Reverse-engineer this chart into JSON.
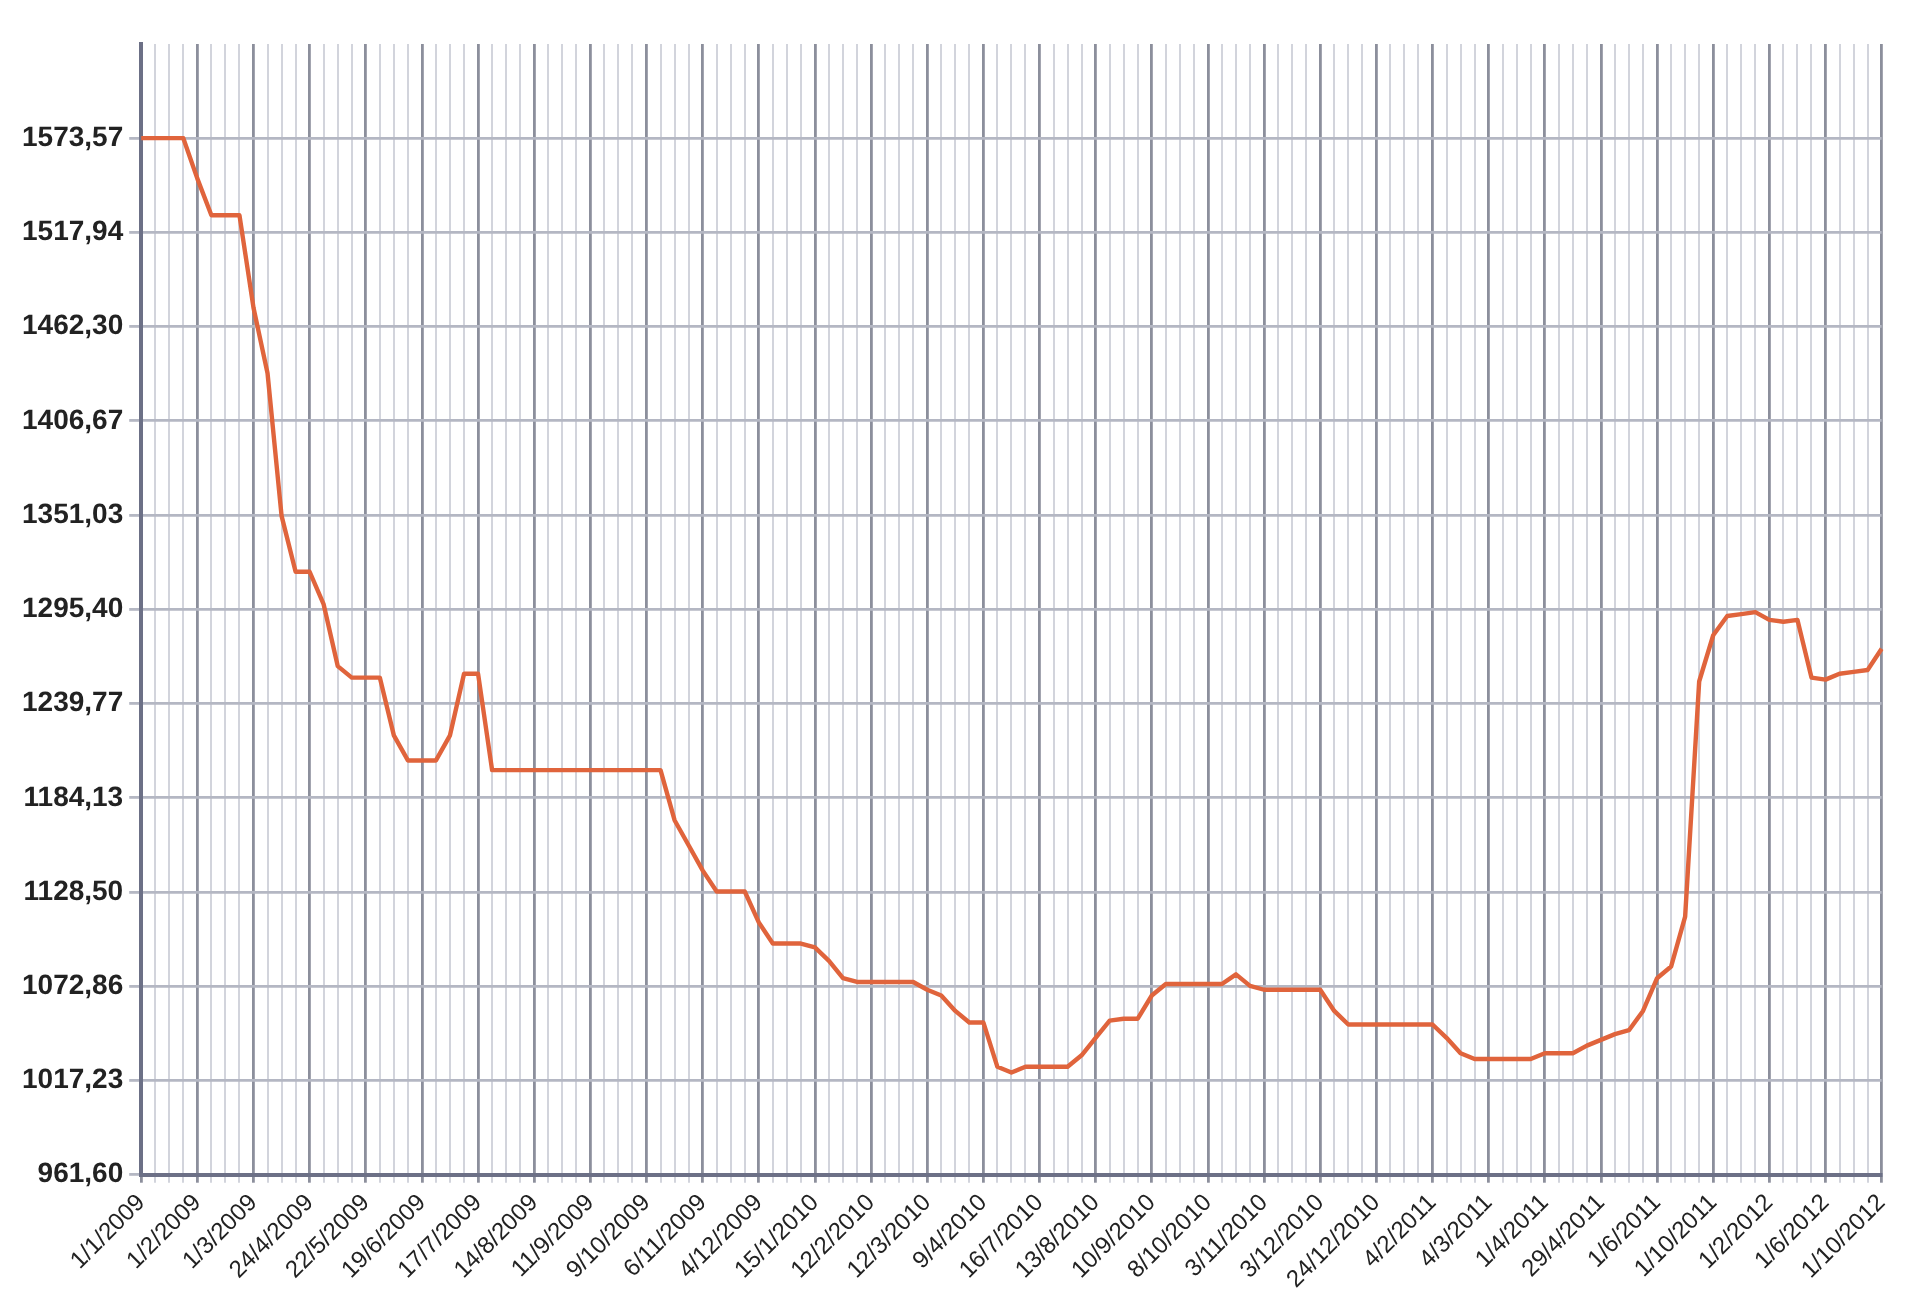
{
  "chart_data": {
    "type": "line",
    "categories": [
      "1/1/2009",
      null,
      null,
      null,
      "1/2/2009",
      null,
      null,
      null,
      "1/3/2009",
      null,
      null,
      null,
      "24/4/2009",
      null,
      null,
      null,
      "22/5/2009",
      null,
      null,
      null,
      "19/6/2009",
      null,
      null,
      null,
      "17/7/2009",
      null,
      null,
      null,
      "14/8/2009",
      null,
      null,
      null,
      "11/9/2009",
      null,
      null,
      null,
      "9/10/2009",
      null,
      null,
      null,
      "6/11/2009",
      null,
      null,
      null,
      "4/12/2009",
      null,
      null,
      null,
      "15/1/2010",
      null,
      null,
      null,
      "12/2/2010",
      null,
      null,
      null,
      "12/3/2010",
      null,
      null,
      null,
      "9/4/2010",
      null,
      null,
      null,
      "16/7/2010",
      null,
      null,
      null,
      "13/8/2010",
      null,
      null,
      null,
      "10/9/2010",
      null,
      null,
      null,
      "8/10/2010",
      null,
      null,
      null,
      "3/11/2010",
      null,
      null,
      null,
      "3/12/2010",
      null,
      null,
      null,
      "24/12/2010",
      null,
      null,
      null,
      "4/2/2011",
      null,
      null,
      null,
      "4/3/2011",
      null,
      null,
      null,
      "1/4/2011",
      null,
      null,
      null,
      "29/4/2011",
      null,
      null,
      null,
      "1/6/2011",
      null,
      null,
      null,
      "1/10/2011",
      null,
      null,
      null,
      "1/2/2012",
      null,
      null,
      null,
      "1/6/2012",
      null,
      null,
      null,
      "1/10/2012"
    ],
    "series": [
      {
        "color": "#e0643c",
        "values": [
          1573.6,
          1573.6,
          1573.6,
          1573.6,
          1549.7,
          1528.1,
          1528.1,
          1528.1,
          1473.5,
          1434.8,
          1350.6,
          1317.6,
          1317.6,
          1298.3,
          1261.9,
          1255.1,
          1255.1,
          1255.1,
          1221.0,
          1206.2,
          1206.2,
          1206.2,
          1221.0,
          1257.4,
          1257.4,
          1200.5,
          1200.5,
          1200.5,
          1200.5,
          1200.5,
          1200.5,
          1200.5,
          1200.5,
          1200.5,
          1200.5,
          1200.5,
          1200.5,
          1200.5,
          1170.9,
          1156.1,
          1141.3,
          1128.8,
          1128.8,
          1128.8,
          1110.6,
          1098.1,
          1098.1,
          1098.1,
          1095.8,
          1087.9,
          1077.6,
          1075.4,
          1075.4,
          1075.4,
          1075.4,
          1075.4,
          1070.8,
          1067.4,
          1058.3,
          1051.5,
          1051.5,
          1025.3,
          1021.9,
          1025.3,
          1025.3,
          1025.3,
          1025.3,
          1032.1,
          1042.4,
          1052.6,
          1053.7,
          1053.7,
          1067.4,
          1074.2,
          1074.2,
          1074.2,
          1074.2,
          1074.2,
          1079.9,
          1073.1,
          1070.8,
          1070.8,
          1070.8,
          1070.8,
          1070.8,
          1058.3,
          1050.3,
          1050.3,
          1050.3,
          1050.3,
          1050.3,
          1050.3,
          1050.3,
          1042.4,
          1033.3,
          1029.9,
          1029.9,
          1029.9,
          1029.9,
          1029.9,
          1033.3,
          1033.3,
          1033.3,
          1037.8,
          1041.2,
          1044.6,
          1046.9,
          1058.3,
          1077.6,
          1084.5,
          1114.0,
          1252.8,
          1280.1,
          1291.5,
          1292.6,
          1293.8,
          1289.2,
          1288.1,
          1289.2,
          1255.1,
          1253.9,
          1257.4,
          1258.5,
          1259.6,
          1272.1
        ]
      }
    ],
    "ylim": [
      961.6,
      1629.2
    ],
    "yticks": [
      {
        "value": 961.6,
        "label": "961,60"
      },
      {
        "value": 1017.23,
        "label": "1017,23"
      },
      {
        "value": 1072.86,
        "label": "1072,86"
      },
      {
        "value": 1128.5,
        "label": "1128,50"
      },
      {
        "value": 1184.13,
        "label": "1184,13"
      },
      {
        "value": 1239.77,
        "label": "1239,77"
      },
      {
        "value": 1295.4,
        "label": "1295,40"
      },
      {
        "value": 1351.03,
        "label": "1351,03"
      },
      {
        "value": 1406.67,
        "label": "1406,67"
      },
      {
        "value": 1462.3,
        "label": "1462,30"
      },
      {
        "value": 1517.94,
        "label": "1517,94"
      },
      {
        "value": 1573.57,
        "label": "1573,57"
      }
    ],
    "grid": true,
    "marker": "none",
    "line_style": "solid",
    "legend": false
  }
}
